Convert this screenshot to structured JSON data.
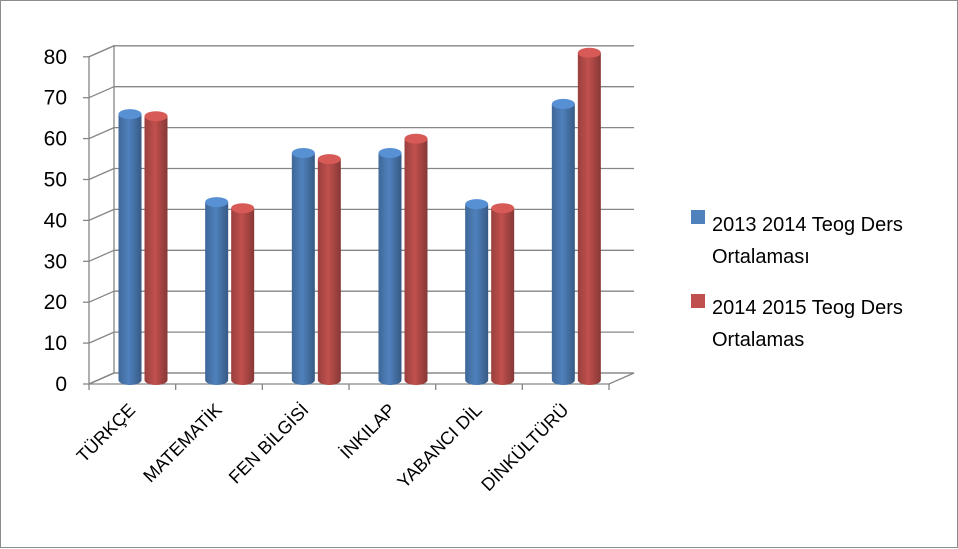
{
  "chart_data": {
    "type": "bar",
    "title": "",
    "xlabel": "",
    "ylabel": "",
    "ylim": [
      0,
      80
    ],
    "yticks": [
      0,
      10,
      20,
      30,
      40,
      50,
      60,
      70,
      80
    ],
    "yticks_labels": [
      "0",
      "10",
      "20",
      "30",
      "40",
      "50",
      "60",
      "70",
      "80"
    ],
    "grid": true,
    "legend_position": "right",
    "categories": [
      "TÜRKÇE",
      "MATEMATİK",
      "FEN BİLGİSİ",
      "İNKILAP",
      "YABANCI DİL",
      "DİNKÜLTÜRÜ"
    ],
    "series": [
      {
        "name_line1": "2013 2014 Teog Ders",
        "name_line2": "Ortalaması",
        "color": "#4f81bd",
        "values": [
          65,
          43.5,
          55.5,
          55.5,
          43,
          67.5
        ]
      },
      {
        "name_line1": "2014 2015 Teog Ders",
        "name_line2": "Ortalamas",
        "color": "#c0504d",
        "values": [
          64.5,
          42,
          54,
          59,
          42,
          80
        ]
      }
    ]
  }
}
